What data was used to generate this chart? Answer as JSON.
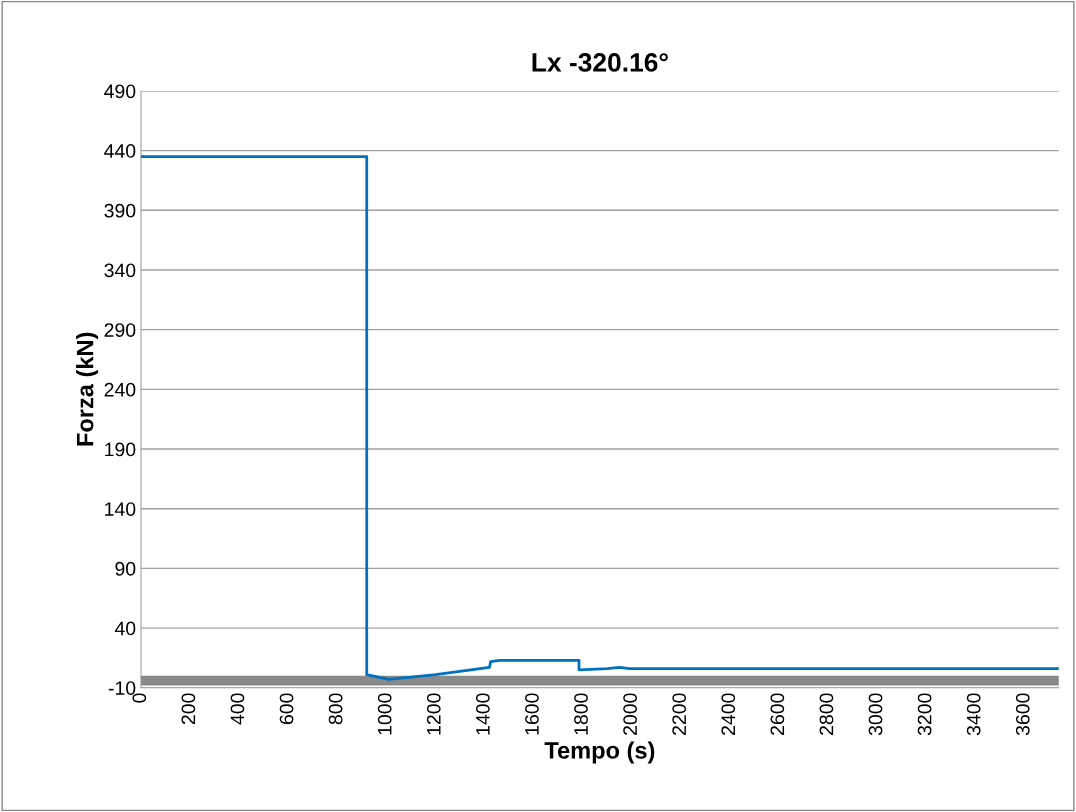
{
  "chart_data": {
    "type": "line",
    "title": "Lx -320.16°",
    "xlabel": "Tempo (s)",
    "ylabel": "Forza (kN)",
    "series": [
      {
        "color": "#0070c0",
        "x": [
          0,
          920,
          920,
          1010,
          1200,
          1420,
          1425,
          1460,
          1785,
          1785,
          1900,
          1950,
          1990,
          3740
        ],
        "values": [
          435,
          435,
          1,
          -3,
          1,
          7,
          12,
          13,
          13,
          5,
          6,
          7,
          6,
          6
        ]
      },
      {
        "color": "#898989",
        "x": [
          0,
          3740
        ],
        "values": [
          -4,
          -4
        ]
      }
    ],
    "xlim": [
      0,
      3740
    ],
    "xticks": [
      0,
      200,
      400,
      600,
      800,
      1000,
      1200,
      1400,
      1600,
      1800,
      2000,
      2200,
      2400,
      2600,
      2800,
      3000,
      3200,
      3400,
      3600
    ],
    "ylim": [
      -10,
      490
    ],
    "yticks": [
      -10,
      40,
      90,
      140,
      190,
      240,
      290,
      340,
      390,
      440,
      490
    ],
    "grid": "y",
    "legend": false,
    "marker": "none",
    "line_style": "solid"
  }
}
